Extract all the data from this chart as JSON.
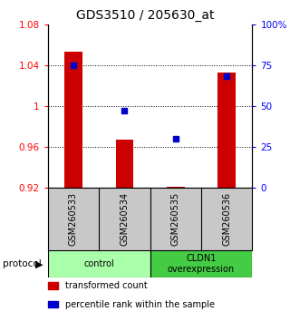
{
  "title": "GDS3510 / 205630_at",
  "samples": [
    "GSM260533",
    "GSM260534",
    "GSM260535",
    "GSM260536"
  ],
  "transformed_counts": [
    1.053,
    0.967,
    0.921,
    1.033
  ],
  "percentile_ranks": [
    75,
    47,
    30,
    68
  ],
  "ylim_left": [
    0.92,
    1.08
  ],
  "ylim_right": [
    0,
    100
  ],
  "yticks_left": [
    0.92,
    0.96,
    1.0,
    1.04,
    1.08
  ],
  "yticks_right": [
    0,
    25,
    50,
    75,
    100
  ],
  "ytick_labels_left": [
    "0.92",
    "0.96",
    "1",
    "1.04",
    "1.08"
  ],
  "ytick_labels_right": [
    "0",
    "25",
    "50",
    "75",
    "100%"
  ],
  "bar_color": "#cc0000",
  "dot_color": "#0000cc",
  "bar_baseline": 0.92,
  "groups": [
    {
      "label": "control",
      "samples": [
        0,
        1
      ],
      "color": "#aaffaa"
    },
    {
      "label": "CLDN1\noverexpression",
      "samples": [
        2,
        3
      ],
      "color": "#44cc44"
    }
  ],
  "protocol_label": "protocol",
  "legend_items": [
    {
      "color": "#cc0000",
      "label": "transformed count"
    },
    {
      "color": "#0000cc",
      "label": "percentile rank within the sample"
    }
  ],
  "bg_color": "#ffffff",
  "sample_box_color": "#c8c8c8",
  "title_fontsize": 10,
  "tick_fontsize": 7.5,
  "bar_width": 0.35
}
